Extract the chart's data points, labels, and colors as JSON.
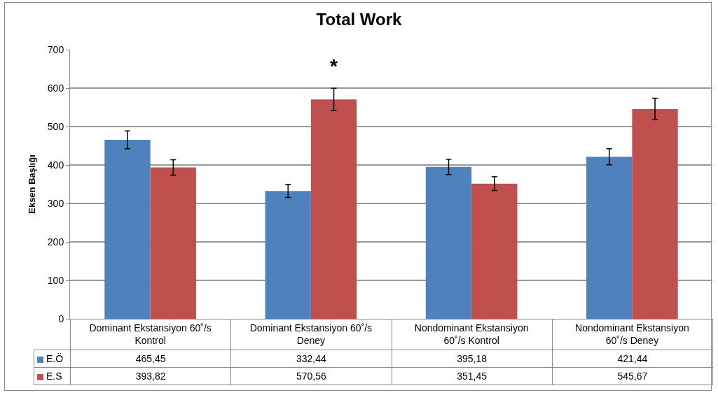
{
  "chart_data": {
    "type": "bar",
    "title": "Total Work",
    "ylabel": "Eksen Başlığı",
    "categories": [
      "Dominant Ekstansiyon 60˚/s Kontrol",
      "Dominant Ekstansiyon 60˚/s Deney",
      "Nondominant Ekstansiyon 60˚/s Kontrol",
      "Nondominant Ekstansiyon 60˚/s Deney"
    ],
    "series": [
      {
        "name": "E.Ö",
        "color": "#4f81bd",
        "values": [
          465.45,
          332.44,
          395.18,
          421.44
        ],
        "errors": [
          23,
          17,
          20,
          21
        ],
        "value_labels": [
          "465,45",
          "332,44",
          "395,18",
          "421,44"
        ]
      },
      {
        "name": "E.S",
        "color": "#c0504d",
        "values": [
          393.82,
          570.56,
          351.45,
          545.67
        ],
        "errors": [
          20,
          29,
          18,
          28
        ],
        "value_labels": [
          "393,82",
          "570,56",
          "351,45",
          "545,67"
        ]
      }
    ],
    "annotations": [
      "*"
    ],
    "ylim": [
      0,
      700
    ],
    "yticks": [
      0,
      100,
      200,
      300,
      400,
      500,
      600,
      700
    ],
    "grid": "y",
    "legend": "bottom left"
  }
}
